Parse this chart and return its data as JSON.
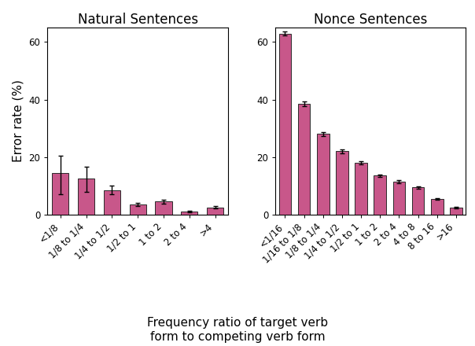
{
  "natural_categories": [
    "<1/8",
    "1/8 to 1/4",
    "1/4 to 1/2",
    "1/2 to 1",
    "1 to 2",
    "2 to 4",
    ">4"
  ],
  "natural_values": [
    14.5,
    12.5,
    8.5,
    3.5,
    4.5,
    1.0,
    2.5
  ],
  "natural_errors_low": [
    7.5,
    4.5,
    1.5,
    0.5,
    0.7,
    0.3,
    0.5
  ],
  "natural_errors_high": [
    6.0,
    4.0,
    1.5,
    0.5,
    0.7,
    0.3,
    0.5
  ],
  "nonce_categories": [
    "<1/16",
    "1/16 to 1/8",
    "1/8 to 1/4",
    "1/4 to 1/2",
    "1/2 to 1",
    "1 to 2",
    "2 to 4",
    "4 to 8",
    "8 to 16",
    ">16"
  ],
  "nonce_values": [
    63.0,
    38.5,
    28.0,
    22.0,
    18.0,
    13.5,
    11.5,
    9.5,
    5.5,
    2.5
  ],
  "nonce_errors_low": [
    0.8,
    0.8,
    0.7,
    0.6,
    0.6,
    0.5,
    0.5,
    0.4,
    0.3,
    0.3
  ],
  "nonce_errors_high": [
    0.8,
    0.8,
    0.7,
    0.6,
    0.6,
    0.5,
    0.5,
    0.4,
    0.3,
    0.3
  ],
  "bar_color": "#C8578A",
  "bar_edge_color": "#2a2a2a",
  "title_natural": "Natural Sentences",
  "title_nonce": "Nonce Sentences",
  "ylabel": "Error rate (%)",
  "xlabel": "Frequency ratio of target verb\nform to competing verb form",
  "ylim": [
    0,
    65
  ],
  "yticks": [
    0,
    20,
    40,
    60
  ],
  "background_color": "#ffffff",
  "title_fontsize": 12,
  "label_fontsize": 11,
  "tick_fontsize": 8.5
}
